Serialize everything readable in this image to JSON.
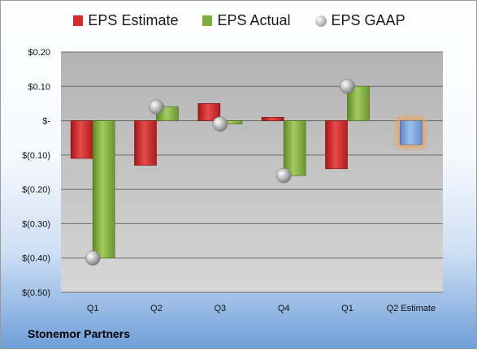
{
  "company": "Stonemor Partners",
  "colors": {
    "estimate": "#d42a2a",
    "actual": "#7fae3a",
    "gaap": "#b8b8b8",
    "future_estimate": "#7ea6dd",
    "highlight": "#f5a050"
  },
  "chart_data": {
    "type": "bar",
    "title": "",
    "xlabel": "",
    "ylabel": "",
    "ylim": [
      -0.5,
      0.2
    ],
    "yticks": [
      0.2,
      0.1,
      0,
      -0.1,
      -0.2,
      -0.3,
      -0.4,
      -0.5
    ],
    "ytick_labels": [
      "$0.20",
      "$0.10",
      "$-",
      "$(0.10)",
      "$(0.20)",
      "$(0.30)",
      "$(0.40)",
      "$(0.50)"
    ],
    "categories": [
      "Q1",
      "Q2",
      "Q3",
      "Q4",
      "Q1",
      "Q2 Estimate"
    ],
    "legend": {
      "position": "top"
    },
    "grid": true,
    "series": [
      {
        "name": "EPS Estimate",
        "type": "bar",
        "values": [
          -0.11,
          -0.13,
          0.05,
          0.01,
          -0.14,
          null
        ]
      },
      {
        "name": "EPS Actual",
        "type": "bar",
        "values": [
          -0.4,
          0.04,
          -0.01,
          -0.16,
          0.1,
          -0.07
        ]
      },
      {
        "name": "EPS GAAP",
        "type": "scatter",
        "values": [
          -0.4,
          0.04,
          -0.01,
          -0.16,
          0.1,
          null
        ]
      }
    ]
  }
}
